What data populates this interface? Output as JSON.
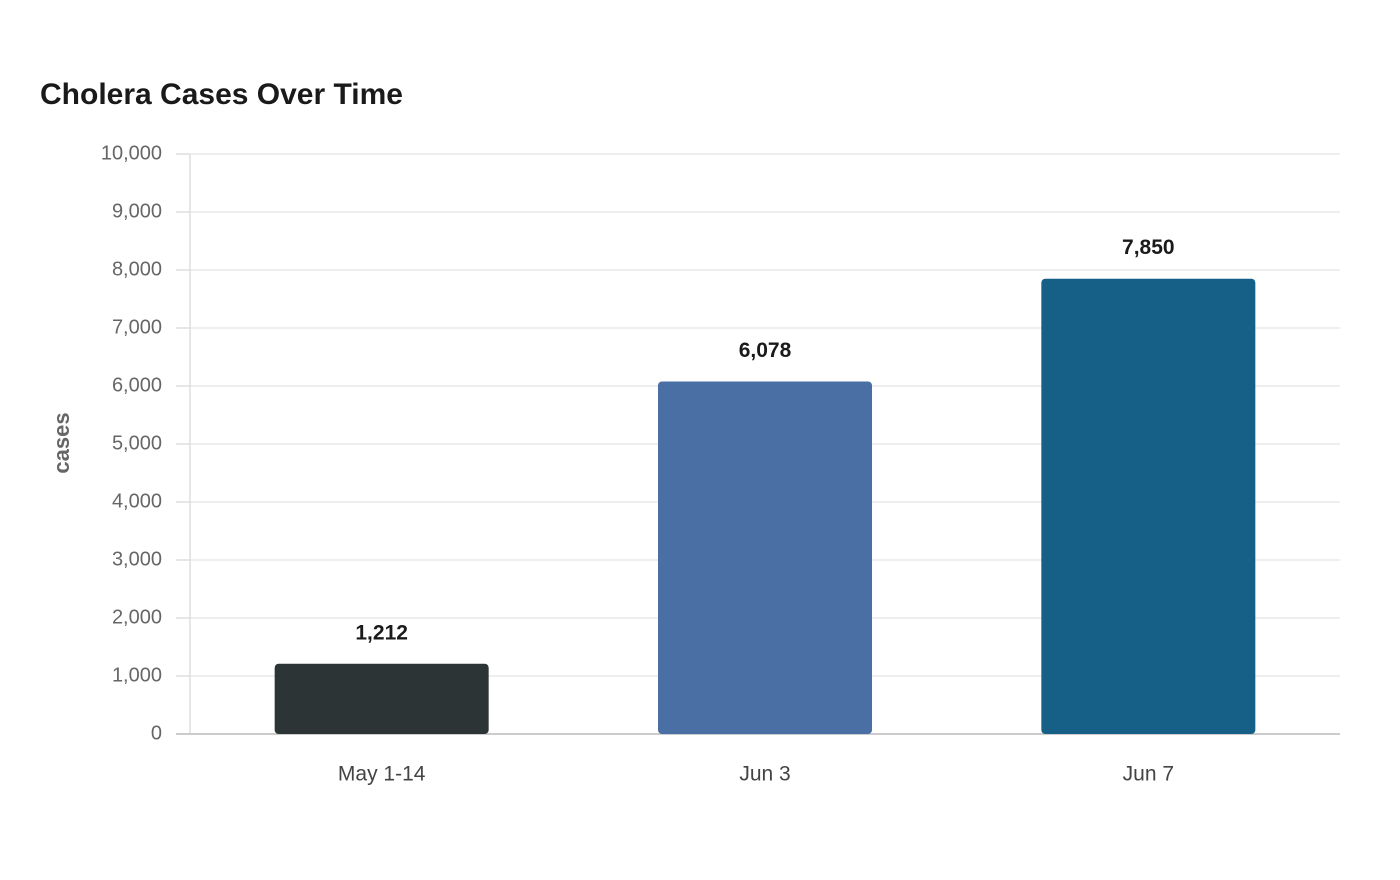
{
  "chart_data": {
    "type": "bar",
    "title": "Cholera Cases Over Time",
    "y_label": "cases",
    "categories": [
      "May 1-14",
      "Jun 3",
      "Jun 7"
    ],
    "values": [
      1212,
      6078,
      7850
    ],
    "value_labels": [
      "1,212",
      "6,078",
      "7,850"
    ],
    "colors": [
      "#2d3436",
      "#4a6fa5",
      "#166088"
    ],
    "ylim": [
      0,
      10000
    ],
    "yticks": [
      0,
      {
        "value": 1000,
        "label": "1,000"
      },
      {
        "value": 2000,
        "label": "2,000"
      },
      {
        "value": 3000,
        "label": "3,000"
      },
      {
        "value": 4000,
        "label": "4,000"
      },
      {
        "value": 5000,
        "label": "5,000"
      },
      {
        "value": 6000,
        "label": "6,000"
      },
      {
        "value": 7000,
        "label": "7,000"
      },
      {
        "value": 8000,
        "label": "8,000"
      },
      {
        "value": 9000,
        "label": "9,000"
      },
      {
        "value": 10000,
        "label": "10,000"
      }
    ],
    "grid": true
  }
}
